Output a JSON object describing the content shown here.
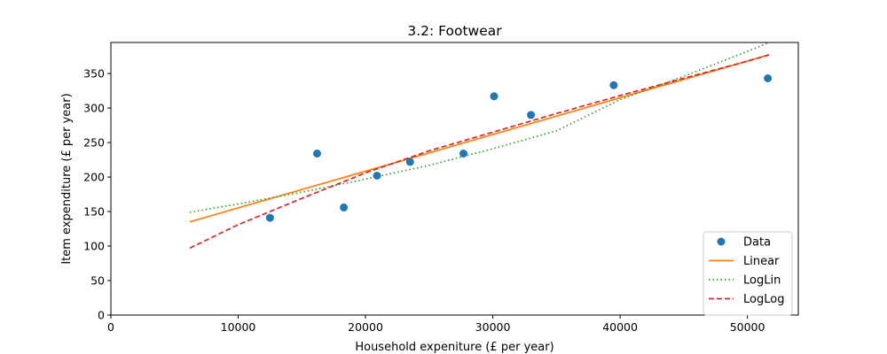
{
  "chart_data": {
    "type": "scatter",
    "title": "3.2: Footwear",
    "xlabel": "Household expeniture (£ per year)",
    "ylabel": "Item expenditure (£ per year)",
    "xlim": [
      0,
      54000
    ],
    "ylim": [
      0,
      395
    ],
    "xticks": [
      0,
      10000,
      20000,
      30000,
      40000,
      50000
    ],
    "yticks": [
      0,
      50,
      100,
      150,
      200,
      250,
      300,
      350
    ],
    "grid": false,
    "legend_position": "lower-right",
    "series": [
      {
        "name": "Data",
        "kind": "scatter",
        "color": "#1f77b4",
        "x": [
          12500,
          16200,
          18300,
          20900,
          23500,
          27700,
          30100,
          33000,
          39500,
          51600
        ],
        "y": [
          141,
          234,
          156,
          202,
          222,
          234,
          317,
          290,
          333,
          343
        ]
      },
      {
        "name": "Linear",
        "kind": "line",
        "style": "solid",
        "color": "#ff7f0e",
        "x": [
          6200,
          51700
        ],
        "y": [
          135,
          377
        ]
      },
      {
        "name": "LogLin",
        "kind": "line",
        "style": "dotted",
        "color": "#2ca02c",
        "x": [
          6200,
          10000,
          15000,
          20000,
          25000,
          30000,
          35000,
          40000,
          45000,
          50000,
          51700
        ],
        "y": [
          149,
          161,
          178,
          197,
          217,
          241,
          267,
          312,
          346,
          382,
          395
        ]
      },
      {
        "name": "LogLog",
        "kind": "line",
        "style": "dashed",
        "color": "#d62728",
        "x": [
          6200,
          10000,
          15000,
          20000,
          25000,
          30000,
          35000,
          40000,
          45000,
          50000,
          51700
        ],
        "y": [
          97,
          131,
          169,
          206,
          238,
          265,
          292,
          318,
          343,
          368,
          377
        ]
      }
    ]
  }
}
